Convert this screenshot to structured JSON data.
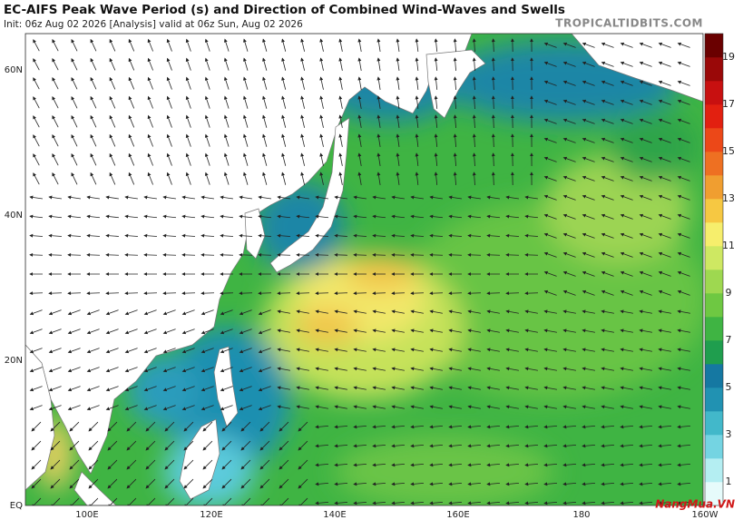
{
  "header": {
    "title": "EC-AIFS Peak Wave Period (s) and Direction of Combined Wind-Waves and Swells",
    "subtitle": "Init: 06z Aug 02 2026   [Analysis]   valid at 06z Sun, Aug 02 2026",
    "site": "TROPICALTIDBITS.COM"
  },
  "map": {
    "lat_labels": [
      "60N",
      "40N",
      "20N",
      "EQ"
    ],
    "lon_labels": [
      "100E",
      "120E",
      "140E",
      "160E",
      "180",
      "160W"
    ]
  },
  "colorbar": {
    "labels": [
      1,
      3,
      5,
      7,
      9,
      11,
      13,
      15,
      17,
      19
    ]
  },
  "watermark": "NangMua.VN"
}
